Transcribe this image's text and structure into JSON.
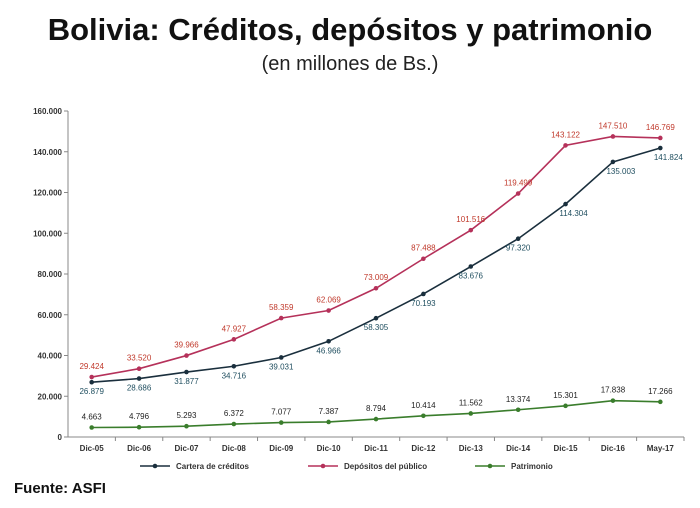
{
  "header": {
    "title": "Bolivia: Créditos, depósitos y patrimonio",
    "subtitle": "(en millones de Bs.)"
  },
  "footer": {
    "source": "Fuente: ASFI"
  },
  "chart_data": {
    "type": "line",
    "title": "Bolivia: Créditos, depósitos y patrimonio",
    "subtitle": "(en millones de Bs.)",
    "categories": [
      "Dic-05",
      "Dic-06",
      "Dic-07",
      "Dic-08",
      "Dic-09",
      "Dic-10",
      "Dic-11",
      "Dic-12",
      "Dic-13",
      "Dic-14",
      "Dic-15",
      "Dic-16",
      "May-17"
    ],
    "ylim": [
      0,
      160000
    ],
    "yticks": [
      0,
      20000,
      40000,
      60000,
      80000,
      100000,
      120000,
      140000,
      160000
    ],
    "ytick_labels": [
      "0",
      "20.000",
      "40.000",
      "60.000",
      "80.000",
      "100.000",
      "120.000",
      "140.000",
      "160.000"
    ],
    "grid": false,
    "legend": "bottom",
    "series": [
      {
        "name": "Cartera de créditos",
        "color": "#1a2f3d",
        "label_color": "#1f4e5f",
        "values": [
          26879,
          28686,
          31877,
          34716,
          39031,
          46966,
          58305,
          70193,
          83676,
          97320,
          114304,
          135003,
          141824
        ],
        "labels": [
          "26.879",
          "28.686",
          "31.877",
          "34.716",
          "39.031",
          "46.966",
          "58.305",
          "70.193",
          "83.676",
          "97.320",
          "114.304",
          "135.003",
          "141.824"
        ]
      },
      {
        "name": "Depósitos del público",
        "color": "#b5315a",
        "label_color": "#c0392b",
        "values": [
          29424,
          33520,
          39966,
          47927,
          58359,
          62069,
          73009,
          87488,
          101516,
          119499,
          143122,
          147510,
          146769
        ],
        "labels": [
          "29.424",
          "33.520",
          "39.966",
          "47.927",
          "58.359",
          "62.069",
          "73.009",
          "87.488",
          "101.516",
          "119.499",
          "143.122",
          "147.510",
          "146.769"
        ]
      },
      {
        "name": "Patrimonio",
        "color": "#3a7d2c",
        "label_color": "#222222",
        "values": [
          4663,
          4796,
          5293,
          6372,
          7077,
          7387,
          8794,
          10414,
          11562,
          13374,
          15301,
          17838,
          17266
        ],
        "labels": [
          "4.663",
          "4.796",
          "5.293",
          "6.372",
          "7.077",
          "7.387",
          "8.794",
          "10.414",
          "11.562",
          "13.374",
          "15.301",
          "17.838",
          "17.266"
        ]
      }
    ]
  }
}
